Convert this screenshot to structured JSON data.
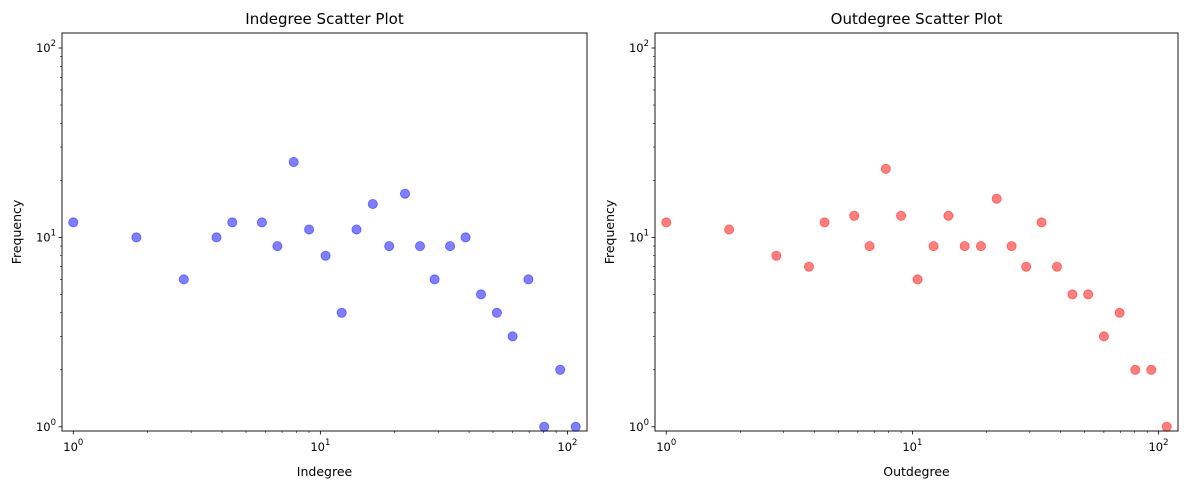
{
  "chart_data": [
    {
      "type": "scatter",
      "title": "Indegree Scatter Plot",
      "xlabel": "Indegree",
      "ylabel": "Frequency",
      "xscale": "log",
      "yscale": "log",
      "xlim": [
        0.9,
        120
      ],
      "ylim": [
        0.95,
        120
      ],
      "grid": false,
      "color": "#0000ff",
      "alpha": 0.5,
      "x": [
        1,
        1.8,
        2.8,
        3.8,
        4.4,
        5.8,
        6.7,
        7.8,
        9,
        10.5,
        12.2,
        14,
        16.3,
        19,
        22,
        25.3,
        29,
        33.5,
        38.7,
        44.7,
        51.8,
        60,
        69.5,
        80.5,
        93.5,
        108
      ],
      "y": [
        12,
        10,
        6,
        10,
        12,
        12,
        9,
        25,
        11,
        8,
        4,
        11,
        15,
        9,
        17,
        9,
        6,
        9,
        10,
        5,
        4,
        3,
        6,
        1,
        2,
        1
      ],
      "x_ticks": [
        {
          "base": "10",
          "exp": "0",
          "value": 1
        },
        {
          "base": "10",
          "exp": "1",
          "value": 10
        },
        {
          "base": "10",
          "exp": "2",
          "value": 100
        }
      ],
      "y_ticks": [
        {
          "base": "10",
          "exp": "0",
          "value": 1
        },
        {
          "base": "10",
          "exp": "1",
          "value": 10
        },
        {
          "base": "10",
          "exp": "2",
          "value": 100
        }
      ]
    },
    {
      "type": "scatter",
      "title": "Outdegree Scatter Plot",
      "xlabel": "Outdegree",
      "ylabel": "Frequency",
      "xscale": "log",
      "yscale": "log",
      "xlim": [
        0.9,
        120
      ],
      "ylim": [
        0.95,
        120
      ],
      "grid": false,
      "color": "#ff0000",
      "alpha": 0.5,
      "x": [
        1,
        1.8,
        2.8,
        3.8,
        4.4,
        5.8,
        6.7,
        7.8,
        9,
        10.5,
        12.2,
        14,
        16.3,
        19,
        22,
        25.3,
        29,
        33.5,
        38.7,
        44.7,
        51.8,
        60,
        69.5,
        80.5,
        93.5,
        108
      ],
      "y": [
        12,
        11,
        8,
        7,
        12,
        13,
        9,
        23,
        13,
        6,
        9,
        13,
        9,
        9,
        16,
        9,
        7,
        12,
        7,
        5,
        5,
        3,
        4,
        2,
        2,
        1
      ],
      "x_ticks": [
        {
          "base": "10",
          "exp": "0",
          "value": 1
        },
        {
          "base": "10",
          "exp": "1",
          "value": 10
        },
        {
          "base": "10",
          "exp": "2",
          "value": 100
        }
      ],
      "y_ticks": [
        {
          "base": "10",
          "exp": "0",
          "value": 1
        },
        {
          "base": "10",
          "exp": "1",
          "value": 10
        },
        {
          "base": "10",
          "exp": "2",
          "value": 100
        }
      ]
    }
  ]
}
